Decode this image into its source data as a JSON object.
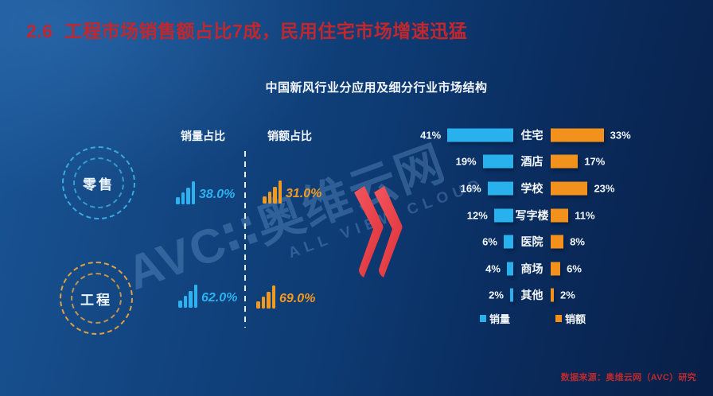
{
  "title": {
    "number": "2.6",
    "text": "工程市场销售额占比7成，民用住宅市场增速迅猛"
  },
  "subtitle": "中国新风行业分应用及细分行业市场结构",
  "left_panel": {
    "col_headers": {
      "volume": "销量占比",
      "amount": "销额占比"
    },
    "groups": [
      {
        "label": "零售",
        "volume": "38.0%",
        "amount": "31.0%"
      },
      {
        "label": "工程",
        "volume": "62.0%",
        "amount": "69.0%"
      }
    ]
  },
  "chart_data": {
    "type": "bar",
    "orientation": "horizontal-paired",
    "title": "中国新风行业分应用及细分行业市场结构",
    "categories": [
      "住宅",
      "酒店",
      "学校",
      "写字楼",
      "医院",
      "商场",
      "其他"
    ],
    "series": [
      {
        "name": "销量",
        "values": [
          41,
          19,
          16,
          12,
          6,
          4,
          2
        ],
        "color": "#29b1ed"
      },
      {
        "name": "销额",
        "values": [
          33,
          17,
          23,
          11,
          8,
          6,
          2
        ],
        "color": "#f2921d"
      }
    ],
    "unit": "%",
    "legend_position": "bottom",
    "grid": false
  },
  "legend": [
    {
      "label": "销量",
      "color": "#29b1ed"
    },
    {
      "label": "销额",
      "color": "#f2921d"
    }
  ],
  "watermark": {
    "logo": "AVC",
    "colon": "∷",
    "cn": "奥维云网",
    "en": "ALL VIEW CLOUD"
  },
  "source": "数据来源：奥维云网（AVC）研究",
  "colors": {
    "title_red": "#c1272d",
    "cyan": "#29b1ed",
    "orange": "#f2921d",
    "arrow_red": "#e8414f",
    "bg_light": "#1a5596",
    "bg_dark": "#081f47"
  }
}
